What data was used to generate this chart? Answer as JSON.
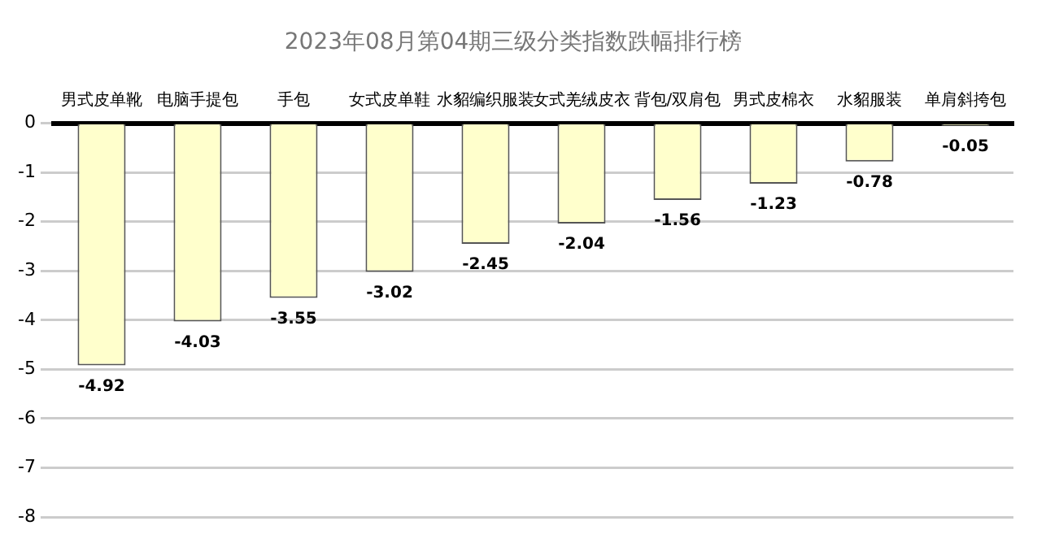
{
  "chart_data": {
    "type": "bar",
    "title": "2023年08月第04期三级分类指数跌幅排行榜",
    "categories": [
      "男式皮单靴",
      "电脑手提包",
      "手包",
      "女式皮单鞋",
      "水貂编织服装",
      "女式羌绒皮衣",
      "背包/双肩包",
      "男式皮棉衣",
      "水貂服装",
      "单肩斜挎包"
    ],
    "values": [
      -4.92,
      -4.03,
      -3.55,
      -3.02,
      -2.45,
      -2.04,
      -1.56,
      -1.23,
      -0.78,
      -0.05
    ],
    "color": "#ffffcc",
    "ylim": [
      -8,
      0
    ],
    "yticks": [
      0,
      -1,
      -2,
      -3,
      -4,
      -5,
      -6,
      -7,
      -8
    ],
    "grid": "y",
    "data_labels": true,
    "legend": false
  }
}
